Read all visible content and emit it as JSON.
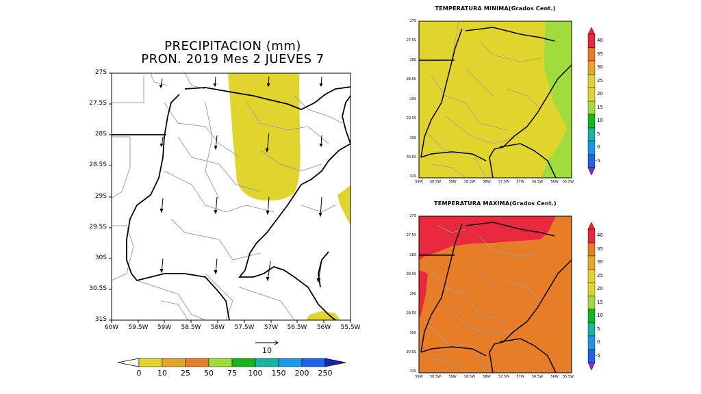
{
  "precip": {
    "title_line1": "PRECIPITACION (mm)",
    "title_line2": "PRON. 2019 Mes 2 JUEVES 7",
    "y_ticks": [
      "27S",
      "27.5S",
      "28S",
      "28.5S",
      "29S",
      "29.5S",
      "30S",
      "30.5S",
      "31S"
    ],
    "x_ticks": [
      "60W",
      "59.5W",
      "59W",
      "58.5W",
      "58W",
      "57.5W",
      "57W",
      "56.5W",
      "56W",
      "55.5W"
    ],
    "vector_ref_label": "10",
    "colorbar_labels": [
      "0",
      "10",
      "25",
      "50",
      "75",
      "100",
      "150",
      "200",
      "250"
    ],
    "colorbar_colors": [
      "#e1d42c",
      "#e1a42c",
      "#e67d2a",
      "#a0dc3c",
      "#19b41c",
      "#19b4a0",
      "#1e96e6",
      "#1e64e6",
      "#1428b4"
    ]
  },
  "tmin": {
    "title": "TEMPERATURA MINIMA(Grados Cent.)",
    "y_ticks": [
      "27S",
      "27.5S",
      "28S",
      "28.5S",
      "29S",
      "29.5S",
      "30S",
      "30.5S",
      "31S"
    ],
    "x_ticks": [
      "59W",
      "58.5W",
      "59W",
      "58.5W",
      "58W",
      "57.5W",
      "57W",
      "56.5W",
      "56W",
      "55.5W"
    ],
    "colorbar_labels": [
      "40",
      "35",
      "30",
      "25",
      "20",
      "15",
      "10",
      "5",
      "0",
      "-5"
    ]
  },
  "tmax": {
    "title": "TEMPERATURA MAXIMA(Grados Cent.)",
    "y_ticks": [
      "27S",
      "27.5S",
      "28S",
      "28.5S",
      "29S",
      "29.5S",
      "30S",
      "30.5S",
      "31S"
    ],
    "x_ticks": [
      "59W",
      "58.5W",
      "59W",
      "58.5W",
      "58W",
      "57.5W",
      "57W",
      "56.5W",
      "56W",
      "55.5W"
    ],
    "colorbar_labels": [
      "40",
      "35",
      "30",
      "25",
      "20",
      "15",
      "10",
      "5",
      "0",
      "-5"
    ]
  },
  "temp_colorbar_colors": [
    "#e8283c",
    "#e87d28",
    "#e8a42c",
    "#e1d42c",
    "#a0dc3c",
    "#19b41c",
    "#19b4a0",
    "#1e96e6",
    "#1e64e6",
    "#9128c8"
  ],
  "field_colors": {
    "precip_light": "#e1d42c",
    "tmin_main": "#e1d42c",
    "tmin_east": "#a0dc3c",
    "tmax_main": "#e87d28",
    "tmax_north": "#e8283c"
  }
}
